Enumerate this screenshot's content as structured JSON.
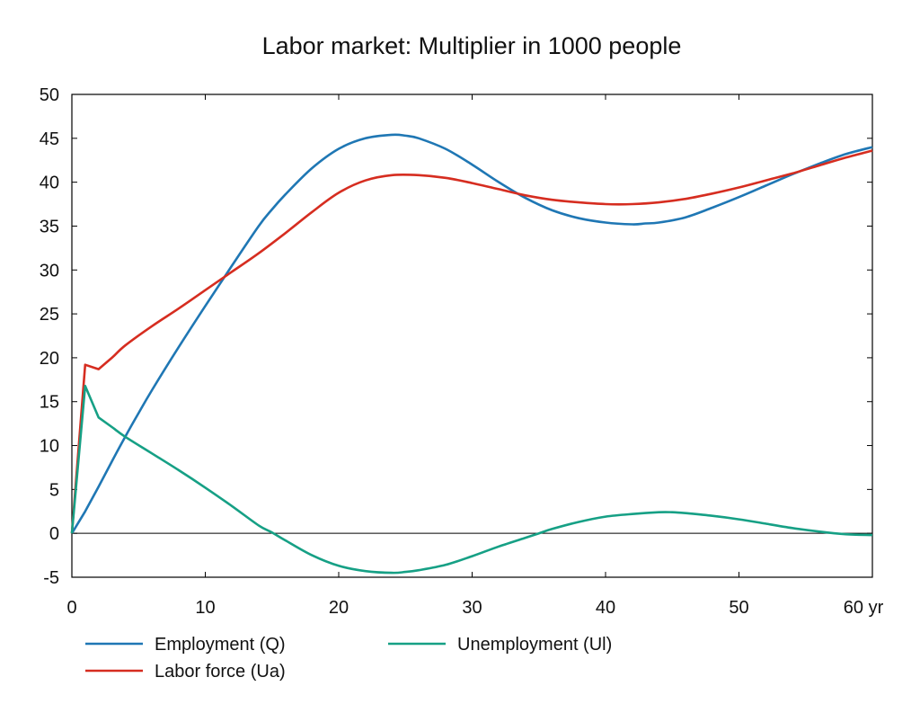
{
  "chart_data": {
    "type": "line",
    "title": "Labor market: Multiplier in 1000 people",
    "xlabel": "",
    "ylabel": "",
    "xlim": [
      0,
      60
    ],
    "ylim": [
      -5,
      50
    ],
    "x_ticks": [
      0,
      10,
      20,
      30,
      40,
      50,
      60
    ],
    "x_tick_labels": [
      "0",
      "10",
      "20",
      "30",
      "40",
      "50",
      "60 yr"
    ],
    "y_ticks": [
      -5,
      0,
      5,
      10,
      15,
      20,
      25,
      30,
      35,
      40,
      45,
      50
    ],
    "y_tick_labels": [
      "-5",
      "0",
      "5",
      "10",
      "15",
      "20",
      "25",
      "30",
      "35",
      "40",
      "45",
      "50"
    ],
    "grid": false,
    "zero_line": true,
    "legend_position": "bottom",
    "series": [
      {
        "name": "Employment (Q)",
        "color": "#1f77b4",
        "x": [
          0,
          1,
          2,
          3,
          4,
          5,
          6,
          8,
          10,
          12,
          14,
          15,
          16,
          18,
          20,
          22,
          24,
          25,
          26,
          28,
          30,
          32,
          34,
          36,
          38,
          40,
          42,
          43,
          44,
          46,
          48,
          50,
          52,
          54,
          56,
          58,
          60
        ],
        "y": [
          0,
          2.5,
          5.3,
          8.2,
          11.0,
          13.7,
          16.3,
          21.2,
          25.9,
          30.5,
          35.0,
          36.9,
          38.6,
          41.6,
          43.8,
          45.0,
          45.4,
          45.3,
          45.0,
          43.8,
          42.0,
          40.0,
          38.2,
          36.8,
          35.9,
          35.4,
          35.2,
          35.3,
          35.4,
          36.0,
          37.1,
          38.3,
          39.6,
          40.9,
          42.1,
          43.2,
          44.0
        ]
      },
      {
        "name": "Labor force (Ua)",
        "color": "#d62d20",
        "x": [
          0,
          1,
          2,
          3,
          4,
          6,
          8,
          10,
          12,
          14,
          16,
          18,
          20,
          22,
          24,
          26,
          28,
          30,
          32,
          34,
          36,
          38,
          40,
          42,
          44,
          46,
          48,
          50,
          52,
          54,
          56,
          58,
          60
        ],
        "y": [
          0,
          19.2,
          18.7,
          20.0,
          21.4,
          23.6,
          25.6,
          27.7,
          29.8,
          31.9,
          34.2,
          36.6,
          38.8,
          40.2,
          40.8,
          40.8,
          40.5,
          39.9,
          39.2,
          38.5,
          38.0,
          37.7,
          37.5,
          37.5,
          37.7,
          38.1,
          38.7,
          39.4,
          40.2,
          41.0,
          41.9,
          42.8,
          43.6
        ]
      },
      {
        "name": "Unemployment (Ul)",
        "color": "#16a085",
        "x": [
          0,
          1,
          2,
          3,
          4,
          6,
          8,
          10,
          12,
          14,
          15,
          16,
          18,
          20,
          22,
          24,
          25,
          26,
          28,
          30,
          32,
          34,
          35,
          36,
          38,
          40,
          42,
          44,
          45,
          46,
          48,
          50,
          52,
          54,
          56,
          58,
          60
        ],
        "y": [
          0,
          16.8,
          13.2,
          12.1,
          11.0,
          9.1,
          7.2,
          5.2,
          3.1,
          0.9,
          0.1,
          -0.8,
          -2.5,
          -3.7,
          -4.3,
          -4.5,
          -4.4,
          -4.2,
          -3.6,
          -2.6,
          -1.5,
          -0.5,
          0.0,
          0.5,
          1.3,
          1.9,
          2.2,
          2.4,
          2.4,
          2.3,
          2.0,
          1.6,
          1.1,
          0.6,
          0.2,
          -0.1,
          -0.2
        ]
      }
    ]
  }
}
